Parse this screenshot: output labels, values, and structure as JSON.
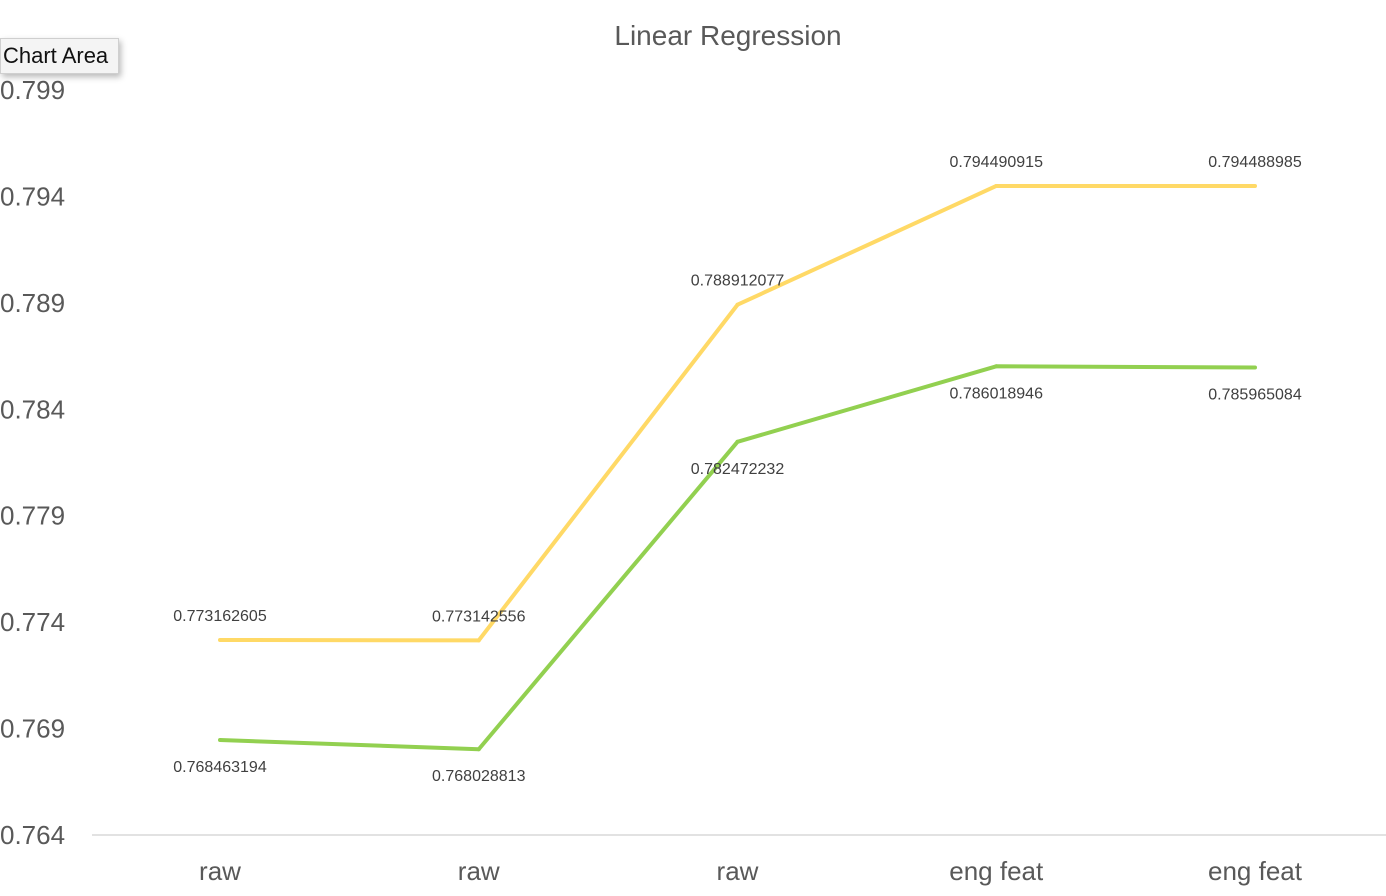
{
  "tooltip": {
    "label": "Chart Area"
  },
  "chart_data": {
    "type": "line",
    "title": "Linear Regression",
    "xlabel": "",
    "ylabel": "",
    "categories": [
      "raw",
      "raw",
      "raw",
      "eng feat",
      "eng feat"
    ],
    "ylim": [
      0.764,
      0.799
    ],
    "yticks": [
      "0.764",
      "0.769",
      "0.774",
      "0.779",
      "0.784",
      "0.789",
      "0.794",
      "0.799"
    ],
    "grid": false,
    "series": [
      {
        "color": "#FFD966",
        "values": [
          0.773162605,
          0.773142556,
          0.788912077,
          0.794490915,
          0.794488985
        ],
        "labels": [
          "0.773162605",
          "0.773142556",
          "0.788912077",
          "0.794490915",
          "0.794488985"
        ],
        "label_position": "above"
      },
      {
        "color": "#92D050",
        "values": [
          0.768463194,
          0.768028813,
          0.782472232,
          0.786018946,
          0.785965084
        ],
        "labels": [
          "0.768463194",
          "0.768028813",
          "0.782472232",
          "0.786018946",
          "0.785965084"
        ],
        "label_position": "below"
      }
    ]
  }
}
